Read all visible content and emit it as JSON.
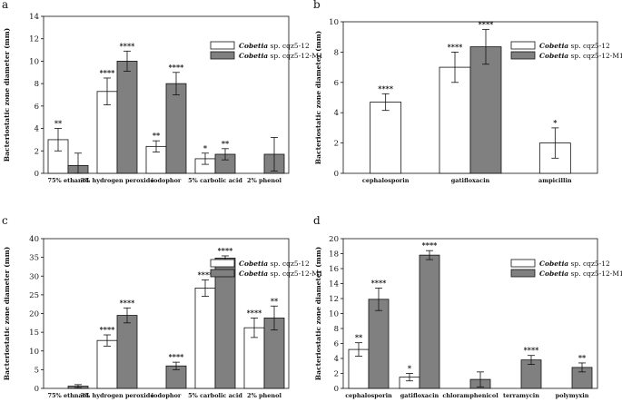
{
  "chart_data": [
    {
      "type": "bar",
      "panel_label": "a",
      "ylabel": "Bacteriostatic zone diameter (mm)",
      "ylim": [
        0,
        14
      ],
      "yticks": [
        0,
        2,
        4,
        6,
        8,
        10,
        12,
        14
      ],
      "categories": [
        "75% ethanol",
        "3% hydrogen peroxide",
        "iodophor",
        "5% carbolic acid",
        "2% phenol"
      ],
      "legend": [
        {
          "italic": "Cobetia",
          "rest": " sp. cqz5-12"
        },
        {
          "italic": "Cobetia",
          "rest": " sp. cqz5-12-M1"
        }
      ],
      "series": [
        {
          "name": "Cobetia sp. cqz5-12",
          "color": "#ffffff",
          "values": [
            3.0,
            7.3,
            2.4,
            1.3,
            0
          ],
          "errors": [
            1.0,
            1.2,
            0.5,
            0.5,
            0
          ],
          "sig": [
            "**",
            "****",
            "**",
            "*",
            ""
          ]
        },
        {
          "name": "Cobetia sp. cqz5-12-M1",
          "color": "#808080",
          "values": [
            0.7,
            10.0,
            8.0,
            1.7,
            1.7
          ],
          "errors": [
            1.1,
            0.9,
            1.0,
            0.5,
            1.5
          ],
          "sig": [
            "",
            "****",
            "****",
            "**",
            ""
          ]
        }
      ]
    },
    {
      "type": "bar",
      "panel_label": "b",
      "ylabel": "Bacteriostatic zone diameter (mm)",
      "ylim": [
        0,
        10
      ],
      "yticks": [
        0,
        2,
        4,
        6,
        8,
        10
      ],
      "categories": [
        "cephalosporin",
        "gatifloxacin",
        "ampicillin"
      ],
      "legend": [
        {
          "italic": "Cobetia",
          "rest": " sp. cqz5-12"
        },
        {
          "italic": "Cobetia",
          "rest": " sp. cqz5-12-M1"
        }
      ],
      "series": [
        {
          "name": "Cobetia sp. cqz5-12",
          "color": "#ffffff",
          "values": [
            4.7,
            7.0,
            2.0
          ],
          "errors": [
            0.55,
            1.0,
            1.0
          ],
          "sig": [
            "****",
            "****",
            "*"
          ]
        },
        {
          "name": "Cobetia sp. cqz5-12-M1",
          "color": "#808080",
          "values": [
            null,
            8.35,
            null
          ],
          "errors": [
            null,
            1.15,
            null
          ],
          "sig": [
            "",
            "****",
            ""
          ]
        }
      ]
    },
    {
      "type": "bar",
      "panel_label": "c",
      "ylabel": "Bacteriostatic zone diameter (mm)",
      "ylim": [
        0,
        40
      ],
      "yticks": [
        0,
        5,
        10,
        15,
        20,
        25,
        30,
        35,
        40
      ],
      "categories": [
        "75% ethnaol",
        "3% hydrogen peroxide",
        "iodophor",
        "5% carbolic acid",
        "2% phenol"
      ],
      "legend": [
        {
          "italic": "Cobetia",
          "rest": " sp. cqz5-12"
        },
        {
          "italic": "Cobetia",
          "rest": " sp. cqz5-12-M1"
        }
      ],
      "series": [
        {
          "name": "Cobetia sp. cqz5-12",
          "color": "#ffffff",
          "values": [
            0,
            12.8,
            0,
            26.8,
            16.2
          ],
          "errors": [
            0,
            1.5,
            0,
            2.2,
            2.6
          ],
          "sig": [
            "",
            "****",
            "",
            "****",
            "****"
          ]
        },
        {
          "name": "Cobetia sp. cqz5-12-M1",
          "color": "#808080",
          "values": [
            0.6,
            19.5,
            6.0,
            34.8,
            18.8
          ],
          "errors": [
            0.4,
            2.0,
            1.0,
            0.6,
            3.2
          ],
          "sig": [
            "",
            "****",
            "****",
            "****",
            "**"
          ]
        }
      ]
    },
    {
      "type": "bar",
      "panel_label": "d",
      "ylabel": "Bacteriostatic zone diameter (mm)",
      "ylim": [
        0,
        20
      ],
      "yticks": [
        0,
        2,
        4,
        6,
        8,
        10,
        12,
        14,
        16,
        18,
        20
      ],
      "categories": [
        "cephalosporin",
        "gatifloxacin",
        "chloramphenicol",
        "terramycin",
        "polymyxin"
      ],
      "legend": [
        {
          "italic": "Cobetia",
          "rest": " sp. cqz5-12"
        },
        {
          "italic": "Cobetia",
          "rest": " sp. cqz5-12-M1"
        }
      ],
      "series": [
        {
          "name": "Cobetia sp. cqz5-12",
          "color": "#ffffff",
          "values": [
            5.2,
            1.5,
            0,
            0,
            0
          ],
          "errors": [
            0.9,
            0.5,
            0,
            0,
            0
          ],
          "sig": [
            "**",
            "*",
            "",
            "",
            ""
          ]
        },
        {
          "name": "Cobetia sp. cqz5-12-M1",
          "color": "#808080",
          "values": [
            11.9,
            17.8,
            1.2,
            3.8,
            2.8
          ],
          "errors": [
            1.5,
            0.6,
            1.0,
            0.6,
            0.6
          ],
          "sig": [
            "****",
            "****",
            "",
            "****",
            "**"
          ]
        }
      ]
    }
  ]
}
